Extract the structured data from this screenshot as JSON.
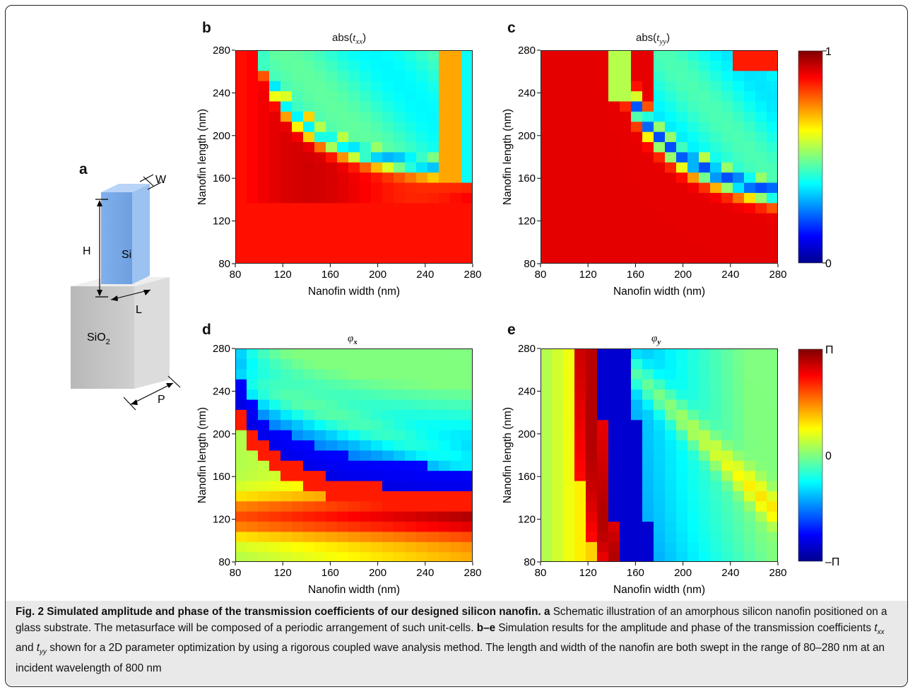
{
  "panel_labels": {
    "a": "a",
    "b": "b",
    "c": "c",
    "d": "d",
    "e": "e"
  },
  "schematic": {
    "labels": {
      "W": "W",
      "H": "H",
      "L": "L",
      "P": "P",
      "Si": "Si",
      "SiO2": "SiO",
      "SiO2_sub": "2"
    }
  },
  "colorbars": {
    "amplitude": {
      "max_label": "1",
      "min_label": "0"
    },
    "phase": {
      "max_label": "Π",
      "mid_label": "0",
      "min_label": "–Π"
    }
  },
  "colors": {
    "jet_low": "#00008f",
    "jet_high": "#800000"
  },
  "chart_data": [
    {
      "type": "heatmap",
      "panel": "b",
      "title_prefix": "abs(",
      "title_var": "t",
      "title_sub": "xx",
      "title_suffix": ")",
      "xlabel": "Nanofin width (nm)",
      "ylabel": "Nanofin length (nm)",
      "xticks": [
        "80",
        "120",
        "160",
        "200",
        "240",
        "280"
      ],
      "yticks": [
        "80",
        "120",
        "160",
        "200",
        "240",
        "280"
      ],
      "xlim": [
        80,
        280
      ],
      "ylim": [
        80,
        280
      ],
      "clim": [
        0,
        1
      ],
      "colormap": "jet"
    },
    {
      "type": "heatmap",
      "panel": "c",
      "title_prefix": "abs(",
      "title_var": "t",
      "title_sub": "yy",
      "title_suffix": ")",
      "xlabel": "Nanofin width (nm)",
      "ylabel": "Nanofin length (nm)",
      "xticks": [
        "80",
        "120",
        "160",
        "200",
        "240",
        "280"
      ],
      "yticks": [
        "80",
        "120",
        "160",
        "200",
        "240",
        "280"
      ],
      "xlim": [
        80,
        280
      ],
      "ylim": [
        80,
        280
      ],
      "clim": [
        0,
        1
      ],
      "colormap": "jet"
    },
    {
      "type": "heatmap",
      "panel": "d",
      "title_var": "φ",
      "title_sub": "x",
      "xlabel": "Nanofin width (nm)",
      "ylabel": "Nanofin length (nm)",
      "xticks": [
        "80",
        "120",
        "160",
        "200",
        "240",
        "280"
      ],
      "yticks": [
        "80",
        "120",
        "160",
        "200",
        "240",
        "280"
      ],
      "xlim": [
        80,
        280
      ],
      "ylim": [
        80,
        280
      ],
      "clim": [
        "-π",
        "π"
      ],
      "colormap": "jet"
    },
    {
      "type": "heatmap",
      "panel": "e",
      "title_var": "φ",
      "title_sub": "y",
      "xlabel": "Nanofin width (nm)",
      "ylabel": "Nanofin length (nm)",
      "xticks": [
        "80",
        "120",
        "160",
        "200",
        "240",
        "280"
      ],
      "yticks": [
        "80",
        "120",
        "160",
        "200",
        "240",
        "280"
      ],
      "xlim": [
        80,
        280
      ],
      "ylim": [
        80,
        280
      ],
      "clim": [
        "-π",
        "π"
      ],
      "colormap": "jet"
    }
  ],
  "caption": {
    "fig": "Fig. 2",
    "title": "Simulated amplitude and phase of the transmission coefficients of our designed silicon nanofin.",
    "a_label": "a",
    "a_text": "Schematic illustration of an amorphous silicon nanofin positioned on a glass substrate. The metasurface will be composed of a periodic arrangement of such unit-cells.",
    "be_label": "b–e",
    "be_text1": "Simulation results for the amplitude and phase of the transmission coefficients",
    "txx": "t",
    "txx_sub": "xx",
    "and": "and",
    "tyy": "t",
    "tyy_sub": "yy",
    "be_text2": "shown for a 2D parameter optimization by using a rigorous coupled wave analysis method. The length and width of the nanofin are both swept in the range of 80–280 nm at an incident wavelength of 800 nm"
  }
}
